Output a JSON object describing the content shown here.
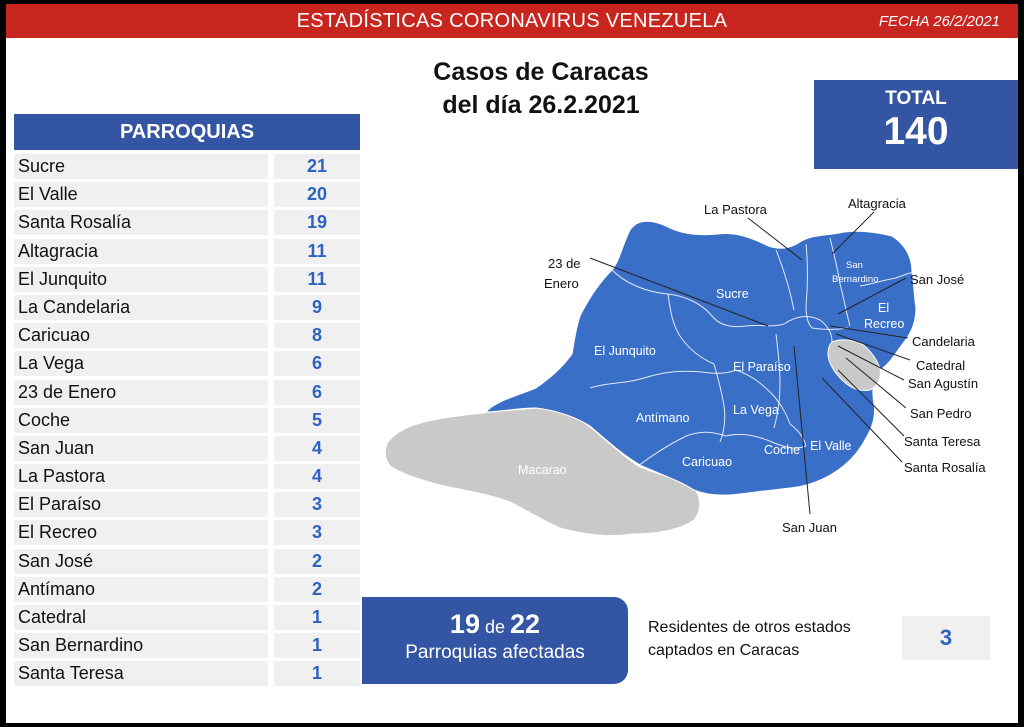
{
  "header": {
    "title": "ESTADÍSTICAS CORONAVIRUS VENEZUELA",
    "date": "FECHA 26/2/2021"
  },
  "title_line1": "Casos de Caracas",
  "title_line2": "del día 26.2.2021",
  "total": {
    "label": "TOTAL",
    "value": "140"
  },
  "table_header": "PARROQUIAS",
  "chart_data": {
    "type": "table",
    "title": "Casos de Caracas del día 26.2.2021",
    "columns": [
      "PARROQUIAS",
      "Casos"
    ],
    "categories": [
      "Sucre",
      "El Valle",
      "Santa Rosalía",
      "Altagracia",
      "El Junquito",
      "La Candelaria",
      "Caricuao",
      "La Vega",
      "23 de Enero",
      "Coche",
      "San Juan",
      "La Pastora",
      "El Paraíso",
      "El Recreo",
      "San José",
      "Antímano",
      "Catedral",
      "San Bernardino",
      "Santa Teresa"
    ],
    "values": [
      21,
      20,
      19,
      11,
      11,
      9,
      8,
      6,
      6,
      5,
      4,
      4,
      3,
      3,
      2,
      2,
      1,
      1,
      1
    ],
    "total": 140
  },
  "affected": {
    "count": "19",
    "word": "de",
    "of": "22",
    "label": "Parroquias afectadas"
  },
  "residents": {
    "label_line1": "Residentes de otros estados",
    "label_line2": "captados en Caracas",
    "value": "3"
  },
  "map": {
    "inside_labels": {
      "sucre": "Sucre",
      "junquito": "El Junquito",
      "paraiso": "El Paraíso",
      "antimano": "Antímano",
      "lavega": "La Vega",
      "caricuao": "Caricuao",
      "coche": "Coche",
      "valle": "El Valle",
      "macarao": "Macarao",
      "san_bernardino_1": "San",
      "san_bernardino_2": "Bernardino",
      "recreo_1": "El",
      "recreo_2": "Recreo"
    },
    "outside_labels": {
      "pastora": "La Pastora",
      "altagracia": "Altagracia",
      "enero_1": "23 de",
      "enero_2": "Enero",
      "sanjose": "San José",
      "candelaria": "Candelaria",
      "catedral": "Catedral",
      "sanagustin": "San Agustín",
      "sanpedro": "San Pedro",
      "santateresa": "Santa Teresa",
      "santarosalia": "Santa Rosalía",
      "sanjuan": "San Juan"
    },
    "colors": {
      "affected": "#3a6fc8",
      "not_affected": "#c9c9c9"
    }
  }
}
